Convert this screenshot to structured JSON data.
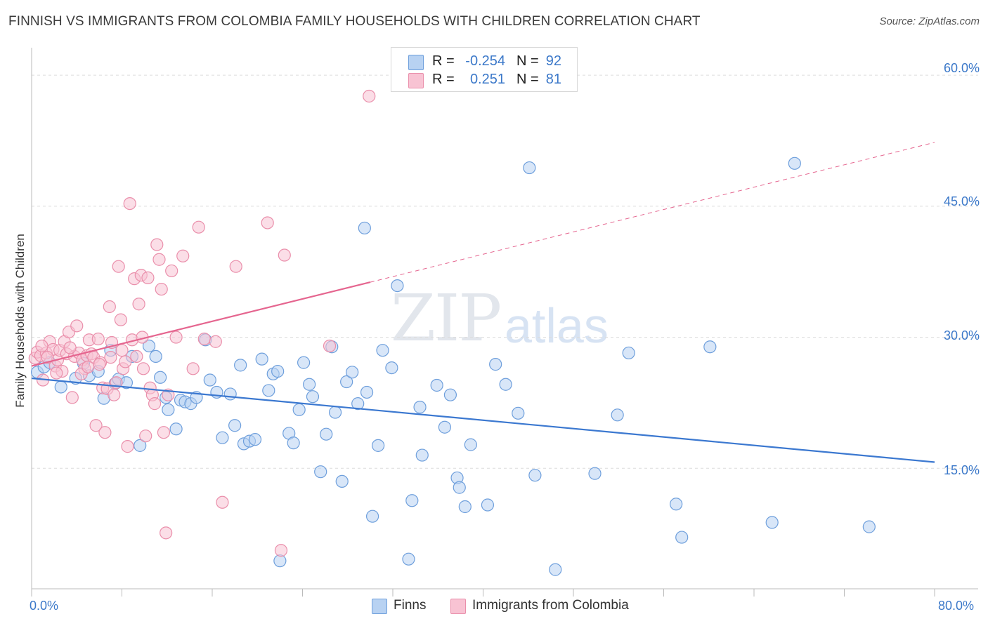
{
  "title": "FINNISH VS IMMIGRANTS FROM COLOMBIA FAMILY HOUSEHOLDS WITH CHILDREN CORRELATION CHART",
  "source": "Source: ZipAtlas.com",
  "watermark": {
    "zip": "ZIP",
    "atlas": "atlas"
  },
  "colors": {
    "finns_fill": "#b8d2f2",
    "finns_stroke": "#6e9fdc",
    "finns_line": "#3b78d0",
    "colombia_fill": "#f8c3d3",
    "colombia_stroke": "#ea8fab",
    "colombia_line": "#e5658f",
    "grid": "#dcdcdc",
    "axis_text": "#3b78c9"
  },
  "legend_top": {
    "rows": [
      {
        "series": "finns",
        "r_label": "R =",
        "r_value": "-0.254",
        "n_label": "N =",
        "n_value": "92"
      },
      {
        "series": "colombia",
        "r_label": "R =",
        "r_value": "0.251",
        "n_label": "N =",
        "n_value": "81"
      }
    ]
  },
  "legend_bottom": {
    "finns": "Finns",
    "colombia": "Immigrants from Colombia"
  },
  "chart_data": {
    "type": "scatter",
    "title": "FINNISH VS IMMIGRANTS FROM COLOMBIA FAMILY HOUSEHOLDS WITH CHILDREN CORRELATION CHART",
    "xlabel": "",
    "ylabel": "Family Households with Children",
    "xlim": [
      0,
      80
    ],
    "ylim": [
      1.2,
      62.5
    ],
    "x_tick_labels": [
      "0.0%",
      "80.0%"
    ],
    "y_tick_labels": [
      {
        "value": 15,
        "label": "15.0%"
      },
      {
        "value": 30,
        "label": "30.0%"
      },
      {
        "value": 45,
        "label": "45.0%"
      },
      {
        "value": 60,
        "label": "60.0%"
      }
    ],
    "grid": true,
    "series": [
      {
        "name": "Finns",
        "key": "finns",
        "R": -0.254,
        "N": 92,
        "trend": {
          "x": [
            0,
            80
          ],
          "y": [
            25.3,
            15.7
          ],
          "dashed_from": null
        },
        "points": [
          [
            0.5,
            26.0
          ],
          [
            1.1,
            26.6
          ],
          [
            1.6,
            27.1
          ],
          [
            2.6,
            24.3
          ],
          [
            3.9,
            25.3
          ],
          [
            4.6,
            27.0
          ],
          [
            5.1,
            25.6
          ],
          [
            5.9,
            26.1
          ],
          [
            6.4,
            23.0
          ],
          [
            7.0,
            28.5
          ],
          [
            7.4,
            24.7
          ],
          [
            7.7,
            25.2
          ],
          [
            8.4,
            24.8
          ],
          [
            8.9,
            27.8
          ],
          [
            9.6,
            17.6
          ],
          [
            10.4,
            29.0
          ],
          [
            11.0,
            27.8
          ],
          [
            11.4,
            25.4
          ],
          [
            11.9,
            23.1
          ],
          [
            12.1,
            21.7
          ],
          [
            12.8,
            19.5
          ],
          [
            13.2,
            22.8
          ],
          [
            13.6,
            22.6
          ],
          [
            14.1,
            22.4
          ],
          [
            14.6,
            23.1
          ],
          [
            15.4,
            29.7
          ],
          [
            15.8,
            25.1
          ],
          [
            16.4,
            23.7
          ],
          [
            16.9,
            18.5
          ],
          [
            17.6,
            23.5
          ],
          [
            18.0,
            19.9
          ],
          [
            18.5,
            26.8
          ],
          [
            18.8,
            17.8
          ],
          [
            19.3,
            18.1
          ],
          [
            19.8,
            18.3
          ],
          [
            20.4,
            27.5
          ],
          [
            21.0,
            23.9
          ],
          [
            21.4,
            25.8
          ],
          [
            21.8,
            26.1
          ],
          [
            22.0,
            4.4
          ],
          [
            22.8,
            19.0
          ],
          [
            23.2,
            17.9
          ],
          [
            23.7,
            21.7
          ],
          [
            24.1,
            27.1
          ],
          [
            24.6,
            24.6
          ],
          [
            24.9,
            23.2
          ],
          [
            25.6,
            14.6
          ],
          [
            26.1,
            18.9
          ],
          [
            26.6,
            28.9
          ],
          [
            26.9,
            21.4
          ],
          [
            27.5,
            13.5
          ],
          [
            27.9,
            24.9
          ],
          [
            28.4,
            26.0
          ],
          [
            28.9,
            22.4
          ],
          [
            29.7,
            23.7
          ],
          [
            30.2,
            9.5
          ],
          [
            30.7,
            17.6
          ],
          [
            31.1,
            28.5
          ],
          [
            31.9,
            26.5
          ],
          [
            32.4,
            35.9
          ],
          [
            33.4,
            4.6
          ],
          [
            33.7,
            11.3
          ],
          [
            34.4,
            22.0
          ],
          [
            34.6,
            16.5
          ],
          [
            35.9,
            24.5
          ],
          [
            36.6,
            19.7
          ],
          [
            37.1,
            23.4
          ],
          [
            37.7,
            13.9
          ],
          [
            37.9,
            12.8
          ],
          [
            38.4,
            10.6
          ],
          [
            38.9,
            17.7
          ],
          [
            40.4,
            10.8
          ],
          [
            41.1,
            26.9
          ],
          [
            42.0,
            24.6
          ],
          [
            43.1,
            21.3
          ],
          [
            44.1,
            49.4
          ],
          [
            44.6,
            14.2
          ],
          [
            46.4,
            3.4
          ],
          [
            49.9,
            14.4
          ],
          [
            51.9,
            21.1
          ],
          [
            52.9,
            28.2
          ],
          [
            57.1,
            10.9
          ],
          [
            57.6,
            7.1
          ],
          [
            60.1,
            28.9
          ],
          [
            65.6,
            8.8
          ],
          [
            67.6,
            49.9
          ],
          [
            74.2,
            8.3
          ],
          [
            29.5,
            42.5
          ]
        ]
      },
      {
        "name": "Immigrants from Colombia",
        "key": "colombia",
        "R": 0.251,
        "N": 81,
        "trend": {
          "x": [
            0,
            80
          ],
          "y": [
            26.7,
            52.3
          ],
          "dashed_from": 30.0
        },
        "points": [
          [
            0.3,
            27.6
          ],
          [
            0.5,
            28.3
          ],
          [
            0.8,
            27.9
          ],
          [
            1.0,
            25.1
          ],
          [
            1.3,
            28.2
          ],
          [
            1.6,
            29.5
          ],
          [
            1.9,
            28.6
          ],
          [
            2.1,
            26.7
          ],
          [
            2.3,
            27.4
          ],
          [
            2.5,
            28.5
          ],
          [
            2.7,
            26.1
          ],
          [
            2.9,
            29.5
          ],
          [
            3.1,
            28.1
          ],
          [
            3.3,
            30.6
          ],
          [
            3.6,
            23.1
          ],
          [
            3.8,
            27.8
          ],
          [
            4.0,
            31.3
          ],
          [
            4.2,
            28.2
          ],
          [
            4.5,
            27.4
          ],
          [
            4.7,
            26.4
          ],
          [
            4.9,
            27.9
          ],
          [
            5.1,
            29.7
          ],
          [
            5.3,
            28.1
          ],
          [
            5.5,
            27.7
          ],
          [
            5.7,
            19.9
          ],
          [
            5.9,
            29.8
          ],
          [
            6.1,
            27.1
          ],
          [
            6.3,
            24.2
          ],
          [
            6.5,
            19.1
          ],
          [
            6.7,
            24.1
          ],
          [
            6.9,
            33.5
          ],
          [
            7.1,
            29.4
          ],
          [
            7.3,
            23.4
          ],
          [
            7.5,
            24.8
          ],
          [
            7.7,
            38.1
          ],
          [
            7.9,
            32.0
          ],
          [
            8.1,
            26.4
          ],
          [
            8.3,
            27.2
          ],
          [
            8.5,
            17.5
          ],
          [
            8.7,
            45.3
          ],
          [
            8.9,
            29.7
          ],
          [
            9.1,
            36.7
          ],
          [
            9.3,
            27.8
          ],
          [
            9.5,
            33.8
          ],
          [
            9.7,
            37.1
          ],
          [
            9.9,
            26.4
          ],
          [
            10.1,
            18.7
          ],
          [
            10.3,
            36.8
          ],
          [
            10.5,
            24.2
          ],
          [
            10.7,
            23.4
          ],
          [
            10.9,
            22.4
          ],
          [
            11.1,
            40.6
          ],
          [
            11.3,
            38.9
          ],
          [
            11.5,
            35.5
          ],
          [
            11.7,
            19.1
          ],
          [
            11.9,
            7.6
          ],
          [
            12.1,
            23.4
          ],
          [
            12.4,
            37.6
          ],
          [
            13.4,
            39.3
          ],
          [
            14.3,
            26.4
          ],
          [
            14.8,
            42.6
          ],
          [
            15.3,
            29.8
          ],
          [
            16.3,
            29.5
          ],
          [
            16.9,
            11.1
          ],
          [
            18.1,
            38.1
          ],
          [
            20.9,
            43.1
          ],
          [
            22.1,
            5.6
          ],
          [
            22.4,
            39.4
          ],
          [
            26.4,
            29.0
          ],
          [
            29.9,
            57.6
          ],
          [
            3.4,
            28.8
          ],
          [
            2.2,
            25.9
          ],
          [
            4.4,
            25.8
          ],
          [
            7.0,
            27.7
          ],
          [
            9.8,
            30.0
          ],
          [
            12.8,
            30.0
          ],
          [
            6.0,
            26.9
          ],
          [
            0.9,
            29.0
          ],
          [
            1.4,
            27.7
          ],
          [
            5.0,
            26.6
          ],
          [
            8.0,
            28.5
          ]
        ]
      }
    ]
  }
}
